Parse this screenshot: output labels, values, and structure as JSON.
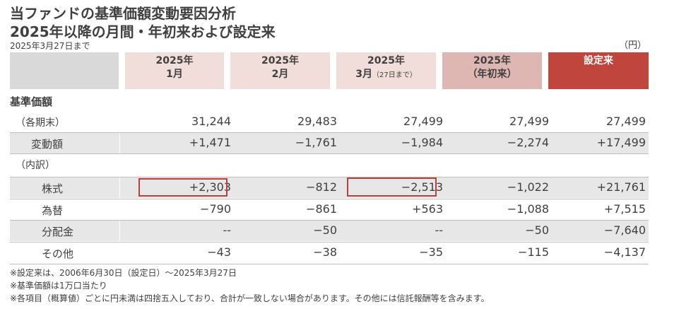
{
  "titles": {
    "line1": "当ファンドの基準価額変動要因分析",
    "line2": "2025年以降の月間・年初来および設定来",
    "as_of": "2025年3月27日まで",
    "unit": "（円）"
  },
  "columns": {
    "m1_year": "2025年",
    "m1_sub": "1月",
    "m2_year": "2025年",
    "m2_sub": "2月",
    "m3_year": "2025年",
    "m3_sub": "3月",
    "m3_note": "（27日まで）",
    "ytd_year": "2025年",
    "ytd_sub": "（年初来）",
    "inception": "設定来"
  },
  "sections": {
    "nav": "基準価額",
    "breakdown": "（内訳）"
  },
  "rows": {
    "period_end": {
      "label": "（各期末）",
      "v": [
        "31,244",
        "29,483",
        "27,499",
        "27,499",
        "27,499"
      ]
    },
    "change": {
      "label": "変動額",
      "v": [
        "+1,471",
        "−1,761",
        "−1,984",
        "−2,274",
        "+17,499"
      ]
    },
    "stocks": {
      "label": "株式",
      "v": [
        "+2,303",
        "−812",
        "−2,513",
        "−1,022",
        "+21,761"
      ]
    },
    "fx": {
      "label": "為替",
      "v": [
        "−790",
        "−861",
        "+563",
        "−1,088",
        "+7,515"
      ]
    },
    "dist": {
      "label": "分配金",
      "v": [
        "‐‐",
        "−50",
        "‐‐",
        "−50",
        "−7,640"
      ]
    },
    "other": {
      "label": "その他",
      "v": [
        "−43",
        "−38",
        "−35",
        "−115",
        "−4,137"
      ]
    }
  },
  "notes": [
    "※設定来は、2006年6月30日（設定日）〜2025年3月27日",
    "※基準価額は1万口当たり",
    "※各項目（概算値）ごとに円未満は四捨五入しており、合計が一致しない場合があります。その他には信託報酬等を含みます。"
  ],
  "colors": {
    "header_month": "#f1ddd9",
    "header_ytd": "#deb7b2",
    "header_inception": "#c0453c",
    "highlight_border": "#b8413a",
    "row_shade": "#e7e7e7"
  }
}
